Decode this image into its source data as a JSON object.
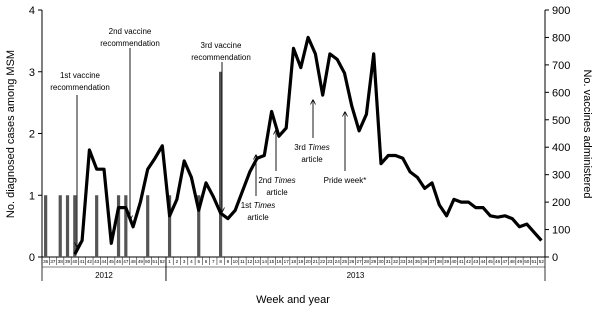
{
  "chart_data": {
    "type": "bar-line",
    "y_label": "No. diagnosed cases among MSM",
    "y2_label": "No. vaccines administered",
    "x_label": "Week and year",
    "groups": [
      {
        "label": "2012",
        "categories": [
          "36",
          "37",
          "38",
          "39",
          "40",
          "41",
          "42",
          "43",
          "44",
          "45",
          "46",
          "47",
          "48",
          "49",
          "50",
          "51",
          "52"
        ]
      },
      {
        "label": "2013",
        "categories": [
          "1",
          "2",
          "3",
          "4",
          "5",
          "6",
          "7",
          "8",
          "9",
          "10",
          "11",
          "12",
          "13",
          "14",
          "15",
          "16",
          "17",
          "18",
          "19",
          "20",
          "21",
          "22",
          "23",
          "24",
          "25",
          "26",
          "27",
          "28",
          "29",
          "30",
          "31",
          "32",
          "33",
          "34",
          "35",
          "36",
          "37",
          "38",
          "39",
          "40",
          "41",
          "42",
          "43",
          "44",
          "45",
          "46",
          "47",
          "48",
          "49",
          "50",
          "51",
          "52"
        ]
      }
    ],
    "ylim": [
      0,
      4
    ],
    "yticks": [
      0,
      1,
      2,
      3,
      4
    ],
    "y2lim": [
      0,
      900
    ],
    "y2ticks": [
      0,
      100,
      200,
      300,
      400,
      500,
      600,
      700,
      800,
      900
    ],
    "series": [
      {
        "name": "Diagnosed cases",
        "type": "bar",
        "color": "#555555",
        "values": [
          1,
          0,
          1,
          1,
          1,
          0,
          0,
          1,
          0,
          0,
          1,
          1,
          0,
          0,
          1,
          0,
          0,
          1,
          0,
          0,
          0,
          1,
          0,
          0,
          3,
          0,
          0,
          0,
          0,
          0,
          0,
          0,
          0,
          0,
          0,
          0,
          0,
          0,
          0,
          0,
          0,
          0,
          0,
          0,
          0,
          0,
          0,
          0,
          0,
          0,
          0,
          0,
          0,
          0,
          0,
          0,
          0,
          0,
          0,
          0,
          0,
          0,
          0,
          0,
          0,
          0,
          0,
          0,
          0
        ]
      },
      {
        "name": "Vaccines administered",
        "type": "line",
        "axis": "y2",
        "color": "#000000",
        "values": [
          null,
          null,
          null,
          null,
          10,
          60,
          390,
          320,
          320,
          50,
          180,
          180,
          110,
          200,
          320,
          360,
          405,
          150,
          210,
          350,
          290,
          170,
          270,
          220,
          160,
          140,
          170,
          240,
          310,
          360,
          370,
          530,
          440,
          470,
          760,
          690,
          800,
          740,
          590,
          740,
          720,
          670,
          550,
          460,
          520,
          740,
          340,
          370,
          370,
          360,
          310,
          290,
          250,
          270,
          190,
          150,
          210,
          200,
          200,
          180,
          180,
          150,
          145,
          150,
          140,
          110,
          120,
          90,
          60
        ]
      }
    ],
    "annotations": [
      {
        "lines": [
          [
            {
              "text": "1st vaccine",
              "italic": false
            }
          ],
          [
            {
              "text": "recommendation",
              "italic": false
            }
          ]
        ]
      },
      {
        "lines": [
          [
            {
              "text": "2nd vaccine",
              "italic": false
            }
          ],
          [
            {
              "text": "recommendation",
              "italic": false
            }
          ]
        ]
      },
      {
        "lines": [
          [
            {
              "text": "3rd vaccine",
              "italic": false
            }
          ],
          [
            {
              "text": "recommendation",
              "italic": false
            }
          ]
        ]
      },
      {
        "lines": [
          [
            {
              "text": "1st ",
              "italic": false
            },
            {
              "text": "Times",
              "italic": true
            }
          ],
          [
            {
              "text": "article",
              "italic": false
            }
          ]
        ]
      },
      {
        "lines": [
          [
            {
              "text": "2nd ",
              "italic": false
            },
            {
              "text": "Times",
              "italic": true
            }
          ],
          [
            {
              "text": "article",
              "italic": false
            }
          ]
        ]
      },
      {
        "lines": [
          [
            {
              "text": "3rd ",
              "italic": false
            },
            {
              "text": "Times",
              "italic": true
            }
          ],
          [
            {
              "text": "article",
              "italic": false
            }
          ]
        ]
      },
      {
        "lines": [
          [
            {
              "text": "Pride week*",
              "italic": false
            }
          ]
        ]
      }
    ]
  }
}
